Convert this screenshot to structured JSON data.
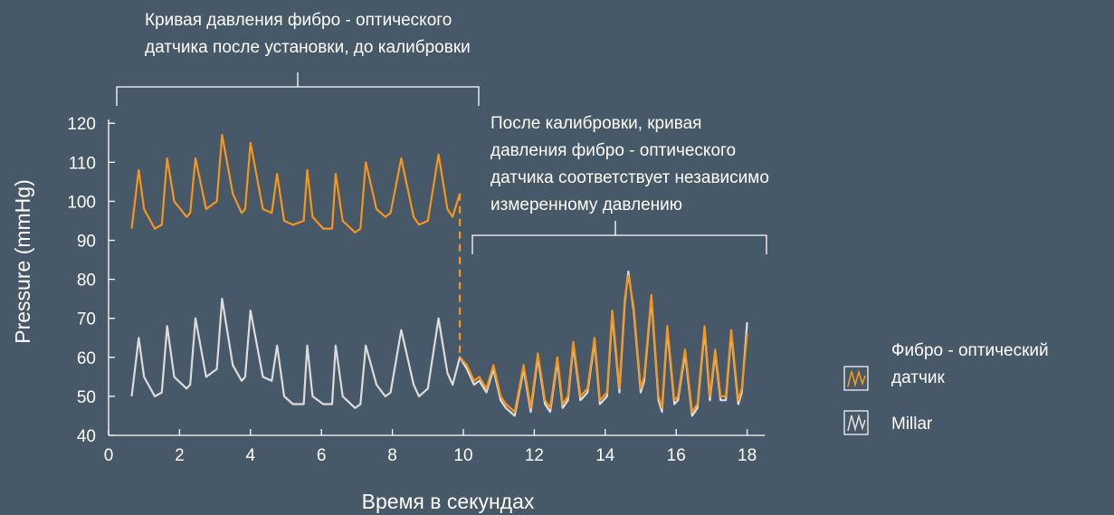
{
  "chart_data": {
    "type": "line",
    "title": "",
    "xlabel": "Время в секундах",
    "ylabel": "Pressure (mmHg)",
    "xlim": [
      0,
      18.5
    ],
    "ylim": [
      40,
      121
    ],
    "x_ticks": [
      0,
      2,
      4,
      6,
      8,
      10,
      12,
      14,
      16,
      18
    ],
    "y_ticks": [
      40,
      50,
      60,
      70,
      80,
      90,
      100,
      110,
      120
    ],
    "grid": false,
    "legend_position": "right",
    "series": [
      {
        "name": "Фибро - оптический датчик",
        "color": "#f5961e",
        "segments": [
          {
            "description": "before calibration",
            "x": [
              0.65,
              0.85,
              1.0,
              1.3,
              1.5,
              1.65,
              1.85,
              2.2,
              2.3,
              2.45,
              2.75,
              3.05,
              3.2,
              3.5,
              3.75,
              3.85,
              4.0,
              4.35,
              4.6,
              4.75,
              4.95,
              5.2,
              5.5,
              5.6,
              5.75,
              6.05,
              6.3,
              6.4,
              6.6,
              6.95,
              7.1,
              7.25,
              7.55,
              7.8,
              7.95,
              8.25,
              8.6,
              8.75,
              9.0,
              9.3,
              9.55,
              9.7,
              9.9
            ],
            "y": [
              93,
              108,
              98,
              93,
              94,
              111,
              100,
              96,
              97,
              111,
              98,
              100,
              117,
              102,
              97,
              98,
              115,
              98,
              97,
              107,
              95,
              94,
              95,
              108,
              96,
              93,
              93,
              107,
              95,
              92,
              93,
              110,
              98,
              96,
              97,
              111,
              96,
              94,
              95,
              112,
              98,
              96,
              102
            ]
          },
          {
            "description": "after calibration",
            "x": [
              9.9,
              10.1,
              10.3,
              10.45,
              10.65,
              10.85,
              11.05,
              11.2,
              11.45,
              11.7,
              11.9,
              12.1,
              12.3,
              12.45,
              12.65,
              12.8,
              12.95,
              13.1,
              13.3,
              13.5,
              13.7,
              13.85,
              14.05,
              14.2,
              14.4,
              14.55,
              14.65,
              14.8,
              15.0,
              15.1,
              15.3,
              15.5,
              15.6,
              15.75,
              15.95,
              16.05,
              16.25,
              16.45,
              16.6,
              16.8,
              16.95,
              17.1,
              17.25,
              17.4,
              17.55,
              17.75,
              17.85,
              18.0
            ],
            "y": [
              60,
              58,
              54,
              55,
              52,
              58,
              50,
              48,
              46,
              58,
              47,
              61,
              49,
              47,
              60,
              48,
              50,
              64,
              50,
              52,
              65,
              49,
              51,
              72,
              52,
              75,
              81,
              73,
              52,
              55,
              76,
              50,
              47,
              68,
              49,
              50,
              62,
              46,
              48,
              68,
              50,
              62,
              50,
              50,
              67,
              49,
              52,
              66
            ]
          }
        ]
      },
      {
        "name": "Millar",
        "color": "#dcdcdc",
        "x": [
          0.65,
          0.85,
          1.0,
          1.3,
          1.5,
          1.65,
          1.85,
          2.2,
          2.3,
          2.45,
          2.75,
          3.05,
          3.2,
          3.5,
          3.75,
          3.85,
          4.0,
          4.35,
          4.6,
          4.75,
          4.95,
          5.2,
          5.5,
          5.6,
          5.75,
          6.05,
          6.3,
          6.4,
          6.6,
          6.95,
          7.1,
          7.25,
          7.55,
          7.8,
          7.95,
          8.25,
          8.6,
          8.75,
          9.0,
          9.3,
          9.55,
          9.7,
          9.9,
          10.1,
          10.3,
          10.45,
          10.65,
          10.85,
          11.05,
          11.2,
          11.45,
          11.7,
          11.9,
          12.1,
          12.3,
          12.45,
          12.65,
          12.8,
          12.95,
          13.1,
          13.3,
          13.5,
          13.7,
          13.85,
          14.05,
          14.2,
          14.4,
          14.55,
          14.65,
          14.8,
          15.0,
          15.1,
          15.3,
          15.5,
          15.6,
          15.75,
          15.95,
          16.05,
          16.25,
          16.45,
          16.6,
          16.8,
          16.95,
          17.1,
          17.25,
          17.4,
          17.55,
          17.75,
          17.85,
          18.0
        ],
        "y": [
          50,
          65,
          55,
          50,
          51,
          68,
          55,
          52,
          53,
          70,
          55,
          57,
          75,
          58,
          54,
          55,
          72,
          55,
          54,
          63,
          50,
          48,
          48,
          63,
          50,
          48,
          48,
          63,
          50,
          47,
          48,
          63,
          53,
          50,
          51,
          67,
          53,
          50,
          52,
          70,
          56,
          53,
          60,
          57,
          53,
          54,
          51,
          57,
          49,
          47,
          45,
          57,
          46,
          60,
          48,
          46,
          59,
          47,
          49,
          63,
          49,
          51,
          64,
          48,
          50,
          71,
          51,
          74,
          82,
          72,
          51,
          54,
          75,
          49,
          46,
          67,
          48,
          49,
          61,
          45,
          47,
          67,
          49,
          61,
          49,
          49,
          66,
          48,
          51,
          69
        ]
      }
    ],
    "annotations": [
      {
        "id": "before",
        "lines": [
          "Кривая давления фибро - оптического",
          "датчика после установки, до калибровки"
        ]
      },
      {
        "id": "after",
        "lines": [
          "После калибровки, кривая",
          "давления фибро - оптического",
          "датчика соответствует независимо",
          "измеренному давлению"
        ]
      }
    ],
    "legend": [
      {
        "lines": [
          "Фибро - оптический",
          "датчик"
        ],
        "color": "#f5961e"
      },
      {
        "lines": [
          "Millar"
        ],
        "color": "#dcdcdc"
      }
    ]
  }
}
